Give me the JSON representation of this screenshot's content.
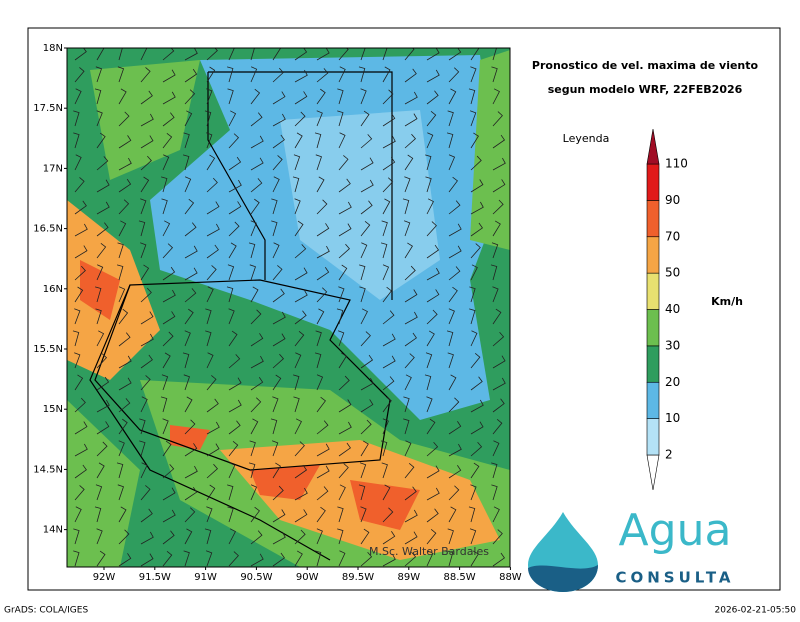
{
  "title": [
    "Pronostico de vel. maxima de viento",
    "segun modelo WRF, 22FEB2026"
  ],
  "legend": {
    "title": "Leyenda",
    "unit": "Km/h",
    "levels": [
      2,
      10,
      20,
      30,
      40,
      50,
      70,
      90,
      110
    ],
    "colors": [
      "#ffffff",
      "#b4e2f6",
      "#5db8e5",
      "#2f9d5e",
      "#6cbf4f",
      "#e8e070",
      "#f5a545",
      "#f0602c",
      "#e01a1a",
      "#a00d25"
    ]
  },
  "map": {
    "lat_labels": [
      "18N",
      "17.5N",
      "17N",
      "16.5N",
      "16N",
      "15.5N",
      "15N",
      "14.5N",
      "14N"
    ],
    "lon_labels": [
      "92W",
      "91.5W",
      "91W",
      "90.5W",
      "90W",
      "89.5W",
      "89W",
      "88.5W",
      "88W"
    ],
    "credit": "M.Sc. Walter Bardales"
  },
  "logo": {
    "word": "Agua",
    "subtitle": "CONSULTA"
  },
  "footer": {
    "left": "GrADS: COLA/IGES",
    "right": "2026-02-21-05:50"
  }
}
